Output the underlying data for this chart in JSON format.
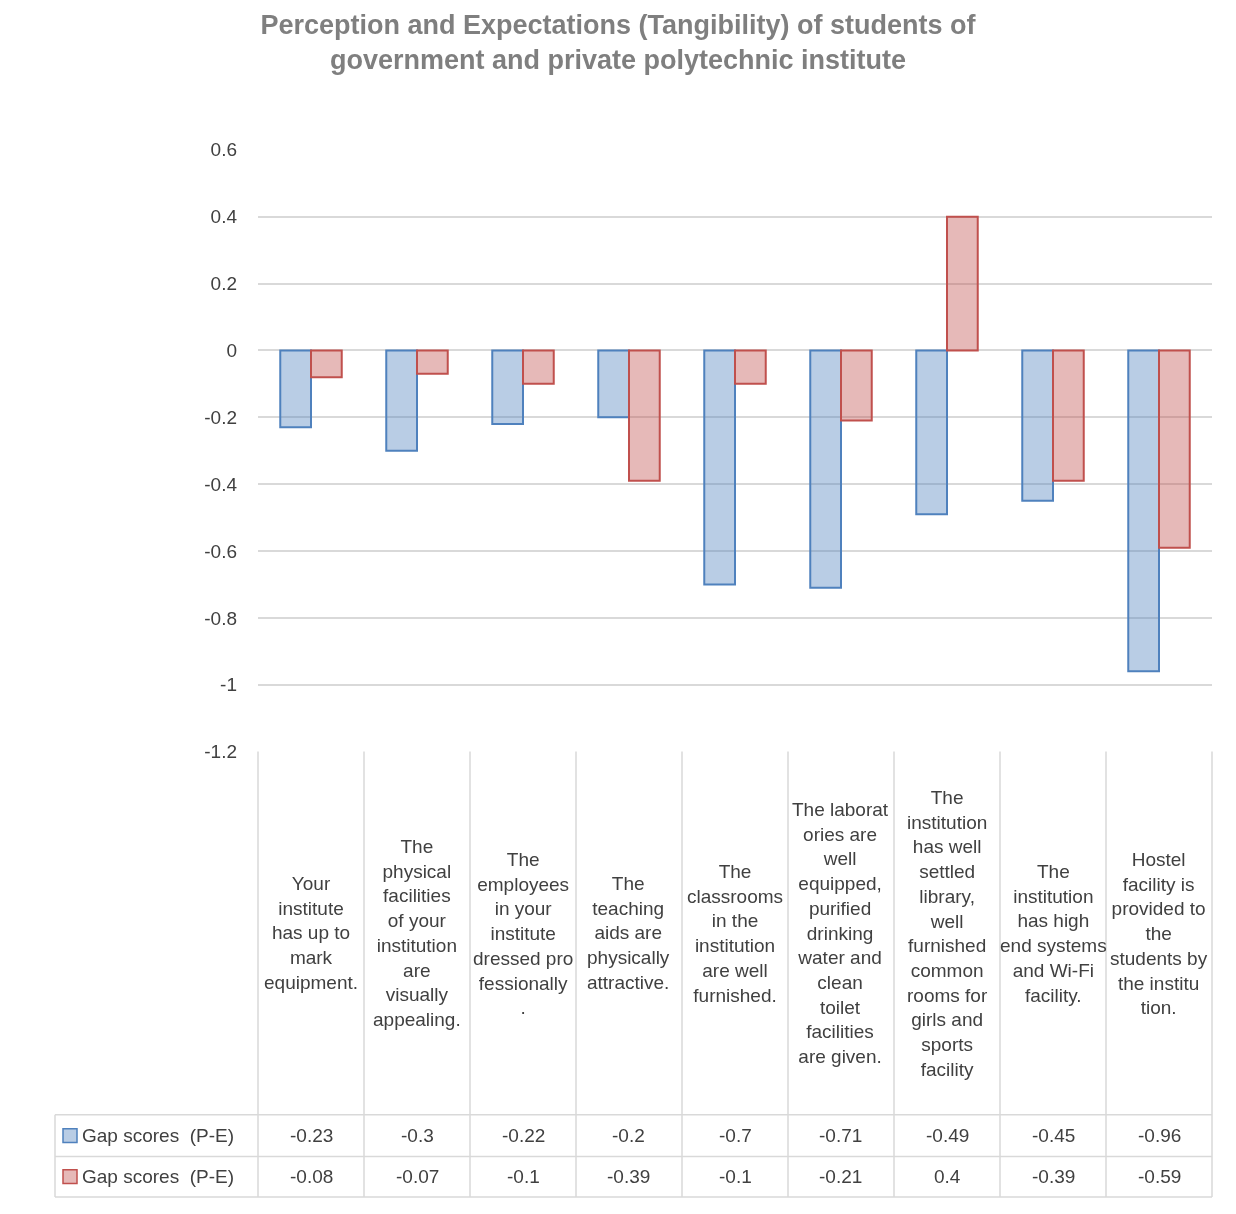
{
  "chart_data": {
    "type": "bar",
    "title": "Perception and Expectations (Tangibility) of students of government and private polytechnic institute",
    "categories": [
      "Your institute has up to mark equipment.",
      "The physical facilities of your institution are visually appealing.",
      "The employees in your institute dressed professionally.",
      "The teaching aids are physically attractive.",
      "The classrooms in the institution are well furnished.",
      "The laboratories are well equipped, purified drinking water and clean toilet facilities are given.",
      "The institution has well settled library, well furnished common rooms for girls and sports facility",
      "The institution has high end systems and Wi-Fi facility.",
      "Hostel facility is provided to the students by the institution."
    ],
    "series": [
      {
        "name": "Gap scores  (P-E)",
        "color": "#4f81bd",
        "values": [
          -0.23,
          -0.3,
          -0.22,
          -0.2,
          -0.7,
          -0.71,
          -0.49,
          -0.45,
          -0.96
        ]
      },
      {
        "name": "Gap scores  (P-E)",
        "color": "#c0504d",
        "values": [
          -0.08,
          -0.07,
          -0.1,
          -0.39,
          -0.1,
          -0.21,
          0.4,
          -0.39,
          -0.59
        ]
      }
    ],
    "ylim": [
      -1.2,
      0.6
    ],
    "yticks": [
      -1.2,
      -1,
      -0.8,
      -0.6,
      -0.4,
      -0.2,
      0,
      0.2,
      0.4,
      0.6
    ],
    "grid": "y",
    "legend": "bottom",
    "data_labels": true
  }
}
